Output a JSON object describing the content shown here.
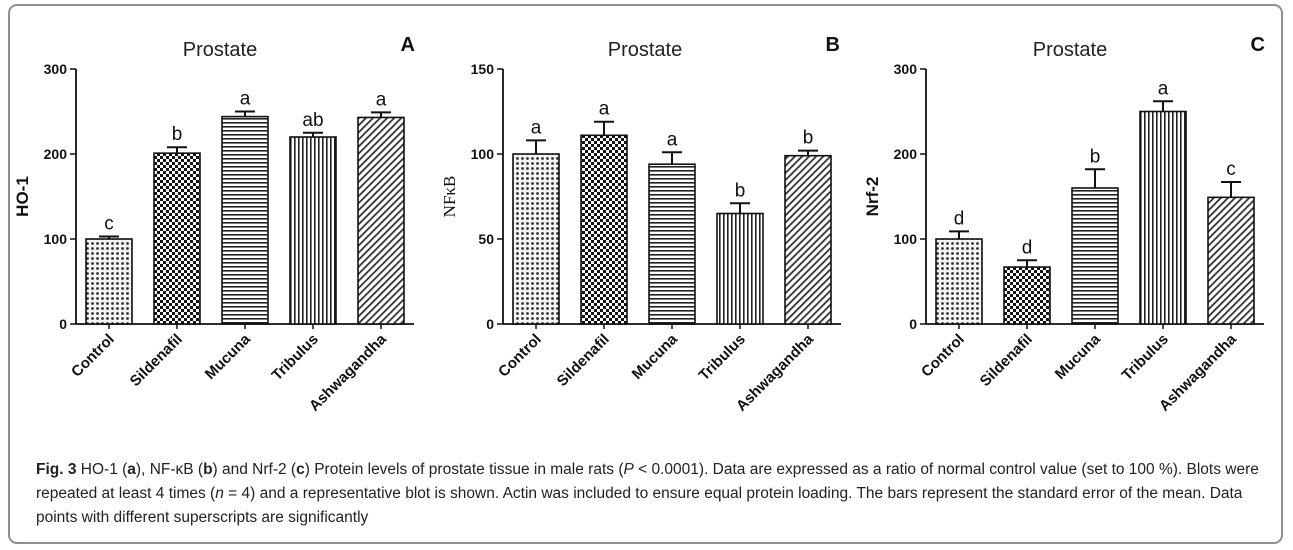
{
  "caption": {
    "label": "Fig. 3",
    "segments": [
      {
        "t": " HO-1 (",
        "b": false
      },
      {
        "t": "a",
        "b": true
      },
      {
        "t": "), NF-κB (",
        "b": false
      },
      {
        "t": "b",
        "b": true
      },
      {
        "t": ") and Nrf-2 (",
        "b": false
      },
      {
        "t": "c",
        "b": true
      },
      {
        "t": ") Protein levels of prostate tissue in male rats (",
        "b": false
      },
      {
        "t": "P",
        "b": false,
        "i": true
      },
      {
        "t": " < 0.0001). Data are expressed as a ratio of normal control value (set to 100 %). Blots were repeated at least 4 times (",
        "b": false
      },
      {
        "t": "n",
        "b": false,
        "i": true
      },
      {
        "t": " = 4) and a representative blot is shown. Actin was included to ensure equal protein loading. The bars represent the standard error of the mean. Data points with different superscripts are significantly",
        "b": false
      }
    ]
  },
  "chart_data": [
    {
      "type": "bar",
      "panel_letter": "A",
      "title": "Prostate",
      "ylabel": "HO-1",
      "ylim": [
        0,
        300
      ],
      "yticks": [
        0,
        100,
        200,
        300
      ],
      "categories": [
        "Control",
        "Sildenafil",
        "Mucuna",
        "Tribulus",
        "Ashwagandha"
      ],
      "values": [
        100,
        201,
        244,
        220,
        243
      ],
      "errors": [
        3,
        7,
        6,
        5,
        6
      ],
      "letters": [
        "c",
        "b",
        "a",
        "ab",
        "a"
      ],
      "patterns": [
        "dots",
        "checker",
        "hlines",
        "vlines",
        "diag"
      ]
    },
    {
      "type": "bar",
      "panel_letter": "B",
      "title": "Prostate",
      "ylabel": "NFκB",
      "ylim": [
        0,
        150
      ],
      "yticks": [
        0,
        50,
        100,
        150
      ],
      "categories": [
        "Control",
        "Sildenafil",
        "Mucuna",
        "Tribulus",
        "Ashwagandha"
      ],
      "values": [
        100,
        111,
        94,
        65,
        99
      ],
      "errors": [
        8,
        8,
        7,
        6,
        3
      ],
      "letters": [
        "a",
        "a",
        "a",
        "b",
        "b"
      ],
      "patterns": [
        "dots",
        "checker",
        "hlines",
        "vlines",
        "diag"
      ]
    },
    {
      "type": "bar",
      "panel_letter": "C",
      "title": "Prostate",
      "ylabel": "Nrf-2",
      "ylim": [
        0,
        300
      ],
      "yticks": [
        0,
        100,
        200,
        300
      ],
      "categories": [
        "Control",
        "Sildenafil",
        "Mucuna",
        "Tribulus",
        "Ashwagandha"
      ],
      "values": [
        100,
        67,
        160,
        250,
        149
      ],
      "errors": [
        9,
        8,
        22,
        12,
        18
      ],
      "letters": [
        "d",
        "d",
        "b",
        "a",
        "c"
      ],
      "patterns": [
        "dots",
        "checker",
        "hlines",
        "vlines",
        "diag"
      ]
    }
  ]
}
